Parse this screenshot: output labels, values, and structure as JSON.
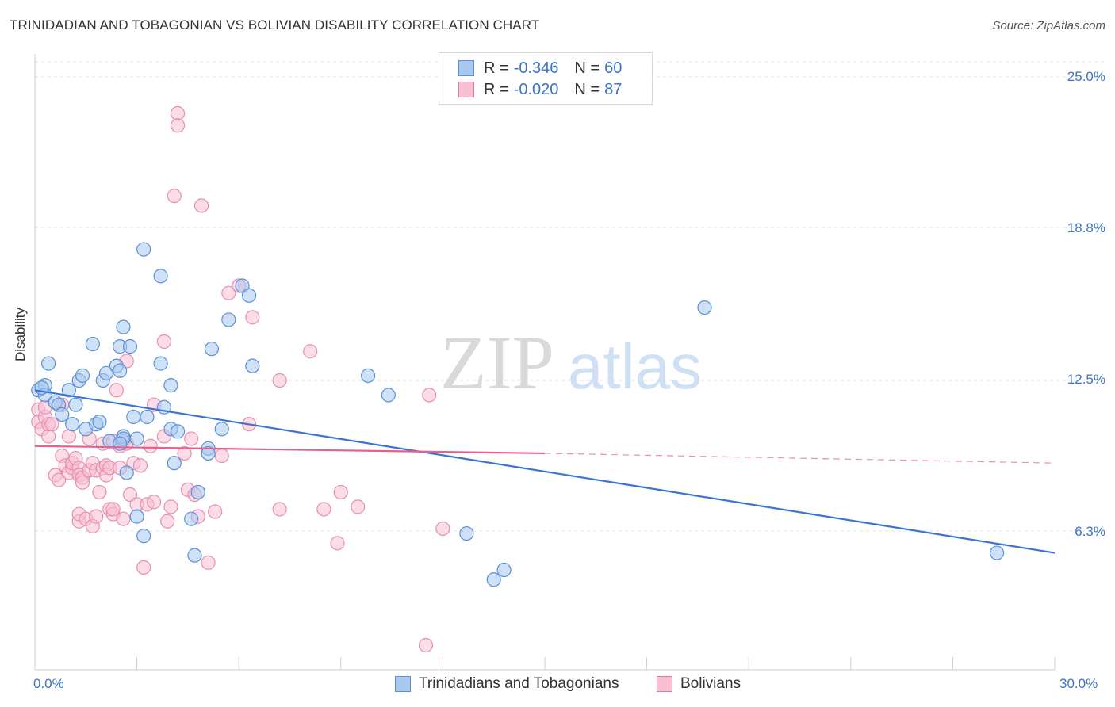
{
  "title": "TRINIDADIAN AND TOBAGONIAN VS BOLIVIAN DISABILITY CORRELATION CHART",
  "source": "Source: ZipAtlas.com",
  "watermark": {
    "zip": "ZIP",
    "atlas": "atlas"
  },
  "legend": {
    "rows": [
      {
        "r_label": "R =",
        "r_value": "-0.346",
        "n_label": "N =",
        "n_value": "60",
        "color": "#a8c8f0",
        "border": "#5b8fd6"
      },
      {
        "r_label": "R =",
        "r_value": "-0.020",
        "n_label": "N =",
        "n_value": "87",
        "color": "#f8c0d4",
        "border": "#e07aa0"
      }
    ]
  },
  "bottom_legend": [
    {
      "label": "Trinidadians and Tobagonians",
      "color": "#a8c8f0",
      "border": "#5b8fd6"
    },
    {
      "label": "Bolivians",
      "color": "#f8c0d4",
      "border": "#e07aa0"
    }
  ],
  "colors": {
    "blue": "#3a74d6",
    "pink": "#e5608c",
    "tick_text": "#3a74c9"
  },
  "chart_data": {
    "type": "scatter",
    "title": "TRINIDADIAN AND TOBAGONIAN VS BOLIVIAN DISABILITY CORRELATION CHART",
    "xlabel": "",
    "ylabel": "Disability",
    "xlim": [
      0,
      30
    ],
    "ylim": [
      0,
      26
    ],
    "x_tick_labels": [
      "0.0%",
      "30.0%"
    ],
    "y_ticks": [
      6.3,
      12.5,
      18.8,
      25.0
    ],
    "y_tick_labels": [
      "6.3%",
      "12.5%",
      "18.8%",
      "25.0%"
    ],
    "grid": true,
    "legend_position": "top-center",
    "series": [
      {
        "name": "Trinidadians and Tobagonians",
        "r": -0.346,
        "n": 60,
        "trend": {
          "x": [
            0,
            30
          ],
          "y": [
            12.1,
            5.4
          ]
        },
        "points": [
          [
            0.1,
            12.1
          ],
          [
            0.3,
            12.3
          ],
          [
            0.4,
            13.2
          ],
          [
            0.3,
            11.9
          ],
          [
            0.6,
            11.6
          ],
          [
            0.7,
            11.5
          ],
          [
            0.8,
            11.1
          ],
          [
            1.0,
            12.1
          ],
          [
            1.1,
            10.7
          ],
          [
            1.3,
            12.5
          ],
          [
            1.4,
            12.7
          ],
          [
            1.5,
            10.5
          ],
          [
            1.7,
            14.0
          ],
          [
            1.8,
            10.7
          ],
          [
            1.9,
            10.8
          ],
          [
            2.0,
            12.5
          ],
          [
            2.1,
            12.8
          ],
          [
            2.2,
            10.0
          ],
          [
            2.4,
            13.1
          ],
          [
            2.5,
            12.9
          ],
          [
            2.5,
            13.9
          ],
          [
            2.6,
            10.2
          ],
          [
            2.6,
            10.1
          ],
          [
            2.5,
            9.9
          ],
          [
            2.6,
            14.7
          ],
          [
            2.7,
            8.7
          ],
          [
            2.8,
            13.9
          ],
          [
            2.9,
            11.0
          ],
          [
            3.0,
            10.1
          ],
          [
            3.0,
            6.9
          ],
          [
            3.2,
            6.1
          ],
          [
            3.2,
            17.9
          ],
          [
            3.3,
            11.0
          ],
          [
            3.7,
            13.2
          ],
          [
            3.7,
            16.8
          ],
          [
            3.8,
            11.4
          ],
          [
            4.0,
            12.3
          ],
          [
            4.0,
            10.5
          ],
          [
            4.1,
            9.1
          ],
          [
            4.2,
            10.4
          ],
          [
            4.6,
            6.8
          ],
          [
            4.7,
            5.3
          ],
          [
            4.8,
            7.9
          ],
          [
            5.1,
            9.7
          ],
          [
            5.1,
            9.5
          ],
          [
            5.2,
            13.8
          ],
          [
            5.5,
            10.5
          ],
          [
            5.7,
            15.0
          ],
          [
            6.1,
            16.4
          ],
          [
            6.3,
            16.0
          ],
          [
            6.4,
            13.1
          ],
          [
            9.8,
            12.7
          ],
          [
            10.4,
            11.9
          ],
          [
            12.7,
            6.2
          ],
          [
            13.5,
            4.3
          ],
          [
            13.8,
            4.7
          ],
          [
            19.7,
            15.5
          ],
          [
            28.3,
            5.4
          ],
          [
            0.2,
            12.2
          ],
          [
            1.2,
            11.5
          ]
        ]
      },
      {
        "name": "Bolivians",
        "r": -0.02,
        "n": 87,
        "trend": {
          "x": [
            0,
            15
          ],
          "y": [
            9.8,
            9.5
          ]
        },
        "trend_dashed": {
          "x": [
            15,
            30
          ],
          "y": [
            9.5,
            9.1
          ]
        },
        "points": [
          [
            0.1,
            11.3
          ],
          [
            0.1,
            10.8
          ],
          [
            0.2,
            10.5
          ],
          [
            0.3,
            11.0
          ],
          [
            0.3,
            11.4
          ],
          [
            0.4,
            10.2
          ],
          [
            0.4,
            10.7
          ],
          [
            0.5,
            10.7
          ],
          [
            0.6,
            8.6
          ],
          [
            0.7,
            8.4
          ],
          [
            0.8,
            11.5
          ],
          [
            0.8,
            9.4
          ],
          [
            0.9,
            9.0
          ],
          [
            1.0,
            8.7
          ],
          [
            1.0,
            10.2
          ],
          [
            1.1,
            8.9
          ],
          [
            1.1,
            9.1
          ],
          [
            1.2,
            9.3
          ],
          [
            1.3,
            8.9
          ],
          [
            1.3,
            8.6
          ],
          [
            1.3,
            6.7
          ],
          [
            1.3,
            7.0
          ],
          [
            1.4,
            8.5
          ],
          [
            1.4,
            8.3
          ],
          [
            1.5,
            6.8
          ],
          [
            1.6,
            8.8
          ],
          [
            1.6,
            10.1
          ],
          [
            1.7,
            9.1
          ],
          [
            1.7,
            6.5
          ],
          [
            1.8,
            8.8
          ],
          [
            1.8,
            6.9
          ],
          [
            1.9,
            7.9
          ],
          [
            2.0,
            8.9
          ],
          [
            2.0,
            9.9
          ],
          [
            2.1,
            9.0
          ],
          [
            2.1,
            8.6
          ],
          [
            2.2,
            7.2
          ],
          [
            2.2,
            8.9
          ],
          [
            2.3,
            7.0
          ],
          [
            2.3,
            7.2
          ],
          [
            2.3,
            10.0
          ],
          [
            2.4,
            12.1
          ],
          [
            2.5,
            9.8
          ],
          [
            2.5,
            8.9
          ],
          [
            2.6,
            10.0
          ],
          [
            2.6,
            6.8
          ],
          [
            2.7,
            9.9
          ],
          [
            2.7,
            13.3
          ],
          [
            2.8,
            7.8
          ],
          [
            2.9,
            9.1
          ],
          [
            3.0,
            7.4
          ],
          [
            3.1,
            9.0
          ],
          [
            3.2,
            4.8
          ],
          [
            3.3,
            7.4
          ],
          [
            3.4,
            9.8
          ],
          [
            3.5,
            7.5
          ],
          [
            3.5,
            11.5
          ],
          [
            3.8,
            14.1
          ],
          [
            3.8,
            10.2
          ],
          [
            3.9,
            6.7
          ],
          [
            4.0,
            7.3
          ],
          [
            4.1,
            20.1
          ],
          [
            4.2,
            23.5
          ],
          [
            4.2,
            23.0
          ],
          [
            4.4,
            9.5
          ],
          [
            4.5,
            8.0
          ],
          [
            4.6,
            10.1
          ],
          [
            4.8,
            6.9
          ],
          [
            4.9,
            19.7
          ],
          [
            5.1,
            5.0
          ],
          [
            5.3,
            7.1
          ],
          [
            5.5,
            9.4
          ],
          [
            5.7,
            16.1
          ],
          [
            6.0,
            16.4
          ],
          [
            6.4,
            15.1
          ],
          [
            6.3,
            10.7
          ],
          [
            7.2,
            7.2
          ],
          [
            7.2,
            12.5
          ],
          [
            8.1,
            13.7
          ],
          [
            8.5,
            7.2
          ],
          [
            8.9,
            5.8
          ],
          [
            9.0,
            7.9
          ],
          [
            9.5,
            7.3
          ],
          [
            11.6,
            11.9
          ],
          [
            12.0,
            6.4
          ],
          [
            11.5,
            1.6
          ],
          [
            4.7,
            7.8
          ]
        ]
      }
    ]
  }
}
